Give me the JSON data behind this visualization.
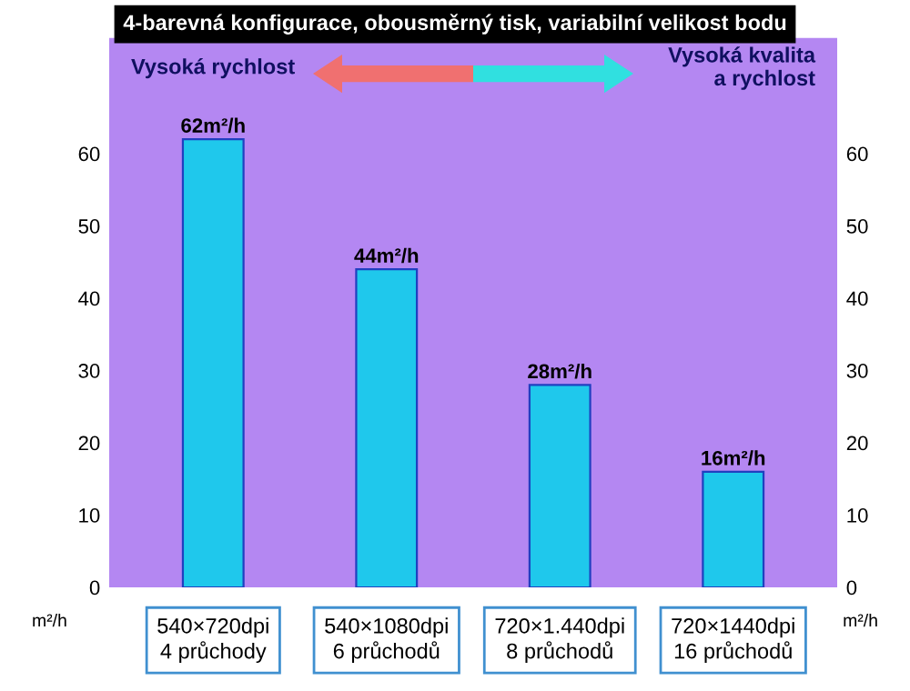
{
  "chart_data": {
    "type": "bar",
    "title": "4-barevná konfigurace, obousměrný tisk, variabilní velikost bodu",
    "categories": [
      "540×720dpi\n4 průchody",
      "540×1080dpi\n6 průchodů",
      "720×1.440dpi\n8 průchodů",
      "720×1440dpi\n16 průchodů"
    ],
    "values": [
      62,
      44,
      28,
      16
    ],
    "color": "#1fc8ec",
    "value_labels": [
      "62m²/h",
      "44m²/h",
      "28m²/h",
      "16m²/h"
    ],
    "ylim": [
      0,
      76
    ],
    "yticks": [
      0,
      10,
      20,
      30,
      40,
      50,
      60
    ],
    "y2lim": [
      0,
      76
    ],
    "y2ticks": [
      0,
      10,
      20,
      30,
      40,
      50,
      60
    ],
    "ylabel": "m²/h",
    "y2label": "m²/h",
    "annotations": [
      "Vysoká rychlost",
      "Vysoká kvalita\na rychlost"
    ],
    "grid": false
  }
}
